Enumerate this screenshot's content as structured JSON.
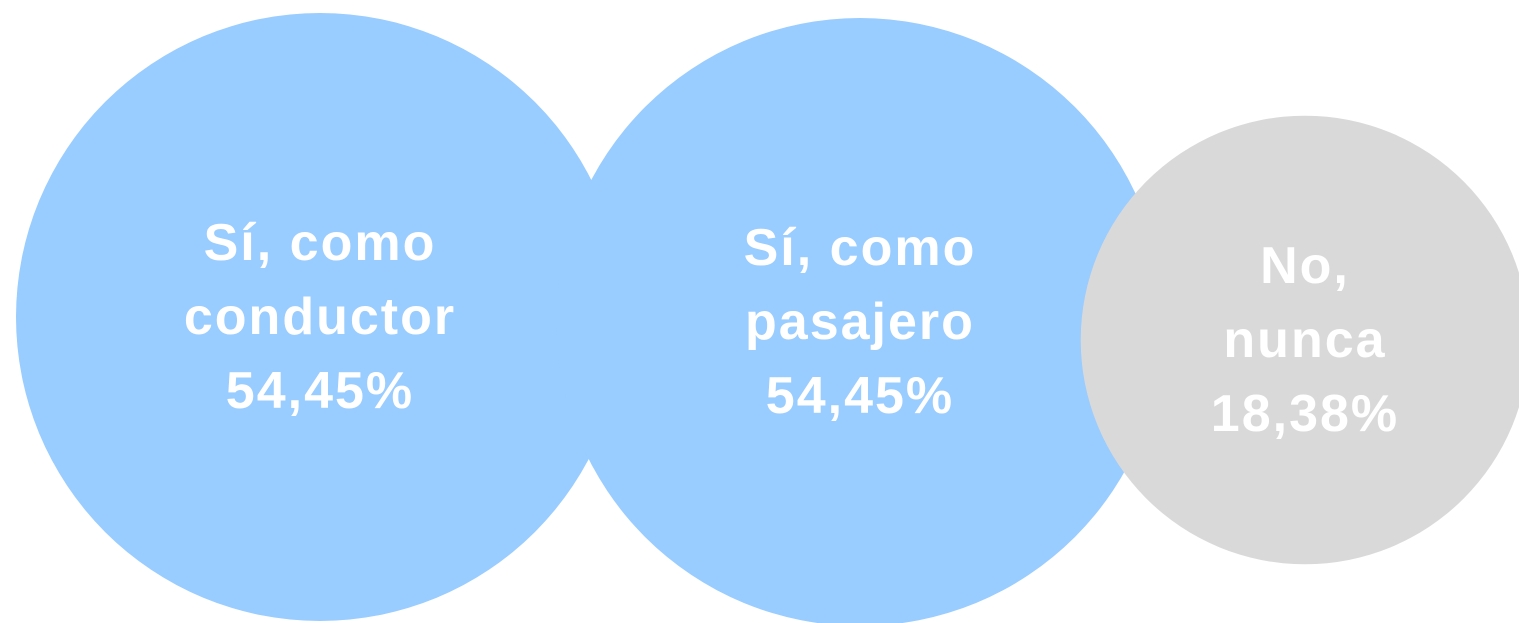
{
  "chart_data": {
    "type": "bubble",
    "categories": [
      "Sí, como conductor",
      "Sí, como pasajero",
      "No, nunca"
    ],
    "values": [
      54.45,
      54.45,
      18.38
    ],
    "value_labels": [
      "54,45%",
      "54,45%",
      "18,38%"
    ],
    "colors": [
      "#99ccff",
      "#99ccff",
      "#d9d9d9"
    ]
  }
}
